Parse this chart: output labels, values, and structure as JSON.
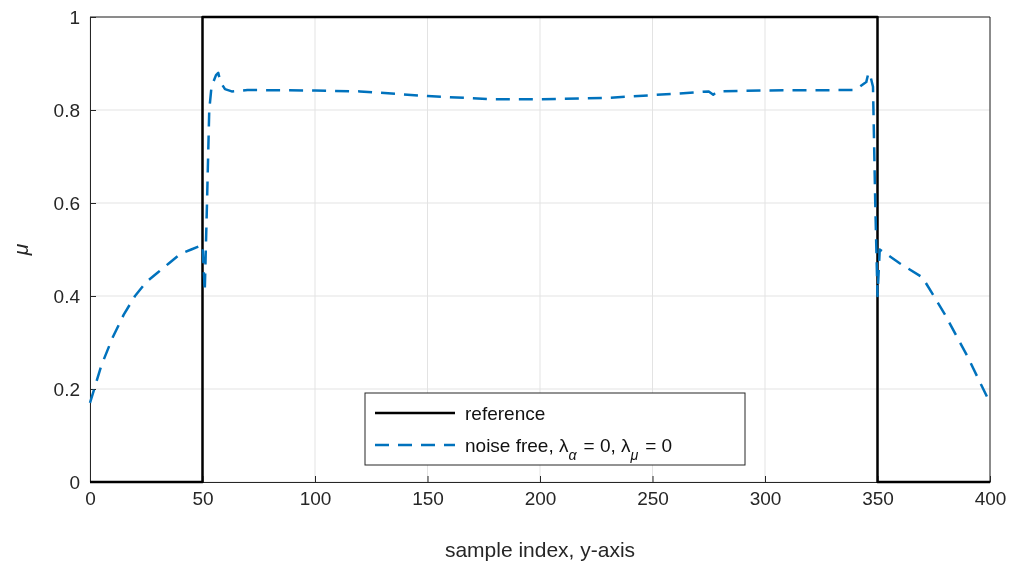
{
  "chart_data": {
    "type": "line",
    "xlabel": "sample index, y-axis",
    "ylabel": "μ",
    "xlim": [
      0,
      400
    ],
    "ylim": [
      0,
      1
    ],
    "xticks": [
      0,
      50,
      100,
      150,
      200,
      250,
      300,
      350,
      400
    ],
    "yticks": [
      0,
      0.2,
      0.4,
      0.6,
      0.8,
      1
    ],
    "grid": true,
    "legend": "bottom",
    "series": [
      {
        "name": "reference",
        "color": "#000000",
        "line_style": "solid",
        "x": [
          0,
          50,
          50,
          350,
          350,
          400
        ],
        "values": [
          0,
          0,
          1,
          1,
          0,
          0
        ]
      },
      {
        "name": "noise free, λ$_{α}$ = 0, λ$_{μ}$ = 0",
        "color": "#0072bd",
        "line_style": "dashed",
        "x": [
          0,
          5,
          10,
          15,
          20,
          25,
          30,
          35,
          40,
          45,
          50,
          51,
          52,
          53,
          54,
          56,
          57,
          58,
          60,
          63,
          70,
          100,
          120,
          150,
          180,
          200,
          230,
          260,
          275,
          277,
          279,
          300,
          340,
          345,
          346,
          347,
          348,
          349,
          350,
          351,
          360,
          370,
          380,
          390,
          400
        ],
        "values": [
          0.17,
          0.25,
          0.31,
          0.36,
          0.4,
          0.43,
          0.45,
          0.47,
          0.49,
          0.5,
          0.51,
          0.41,
          0.6,
          0.8,
          0.85,
          0.875,
          0.88,
          0.86,
          0.845,
          0.84,
          0.843,
          0.842,
          0.84,
          0.83,
          0.823,
          0.823,
          0.826,
          0.835,
          0.84,
          0.833,
          0.84,
          0.842,
          0.843,
          0.86,
          0.88,
          0.87,
          0.85,
          0.6,
          0.4,
          0.5,
          0.47,
          0.44,
          0.36,
          0.27,
          0.17
        ]
      }
    ]
  }
}
